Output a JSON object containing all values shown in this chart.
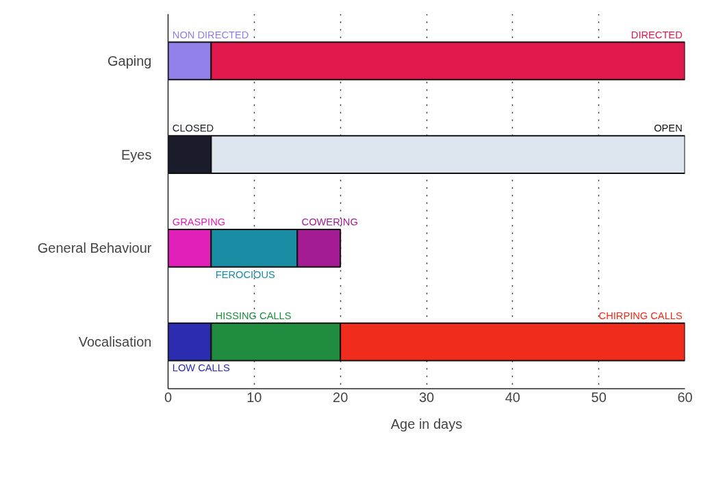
{
  "chart_data": {
    "type": "bar",
    "orientation": "horizontal",
    "stacked": true,
    "categories": [
      "Gaping",
      "Eyes",
      "General Behaviour",
      "Vocalisation"
    ],
    "series": [
      {
        "values": [
          5,
          5,
          5,
          5
        ],
        "colors": [
          "#9080e8",
          "#1a1c2c",
          "#e020b8",
          "#2c2cb0"
        ]
      },
      {
        "values": [
          55,
          55,
          10,
          15
        ],
        "colors": [
          "#e0184c",
          "#dde6ef",
          "#1a8ca4",
          "#208c40"
        ]
      },
      {
        "values": [
          null,
          null,
          5,
          40
        ],
        "colors": [
          null,
          null,
          "#a41c94",
          "#f02c1c"
        ]
      }
    ],
    "xlabel": "Age in days",
    "xlim": [
      0,
      60
    ],
    "xticks": [
      0,
      10,
      20,
      30,
      40,
      50,
      60
    ],
    "grid": "x",
    "annotations": [
      {
        "text": "NON DIRECTED",
        "x": 0,
        "y": "Gaping"
      },
      {
        "text": "DIRECTED",
        "x": 60,
        "y": "Gaping"
      },
      {
        "text": "CLOSED",
        "x": 0,
        "y": "Eyes"
      },
      {
        "text": "OPEN",
        "x": 60,
        "y": "Eyes"
      },
      {
        "text": "GRASPING",
        "x": 0,
        "y": "General Behaviour"
      },
      {
        "text": "COWERING",
        "x": 15,
        "y": "General Behaviour"
      },
      {
        "text": "FEROCIOUS",
        "x": 5,
        "y": "General Behaviour"
      },
      {
        "text": "HISSING CALLS",
        "x": 5,
        "y": "Vocalisation"
      },
      {
        "text": "CHIRPING CALLS",
        "x": 60,
        "y": "Vocalisation"
      },
      {
        "text": "LOW CALLS",
        "x": 0,
        "y": "Vocalisation"
      }
    ]
  }
}
